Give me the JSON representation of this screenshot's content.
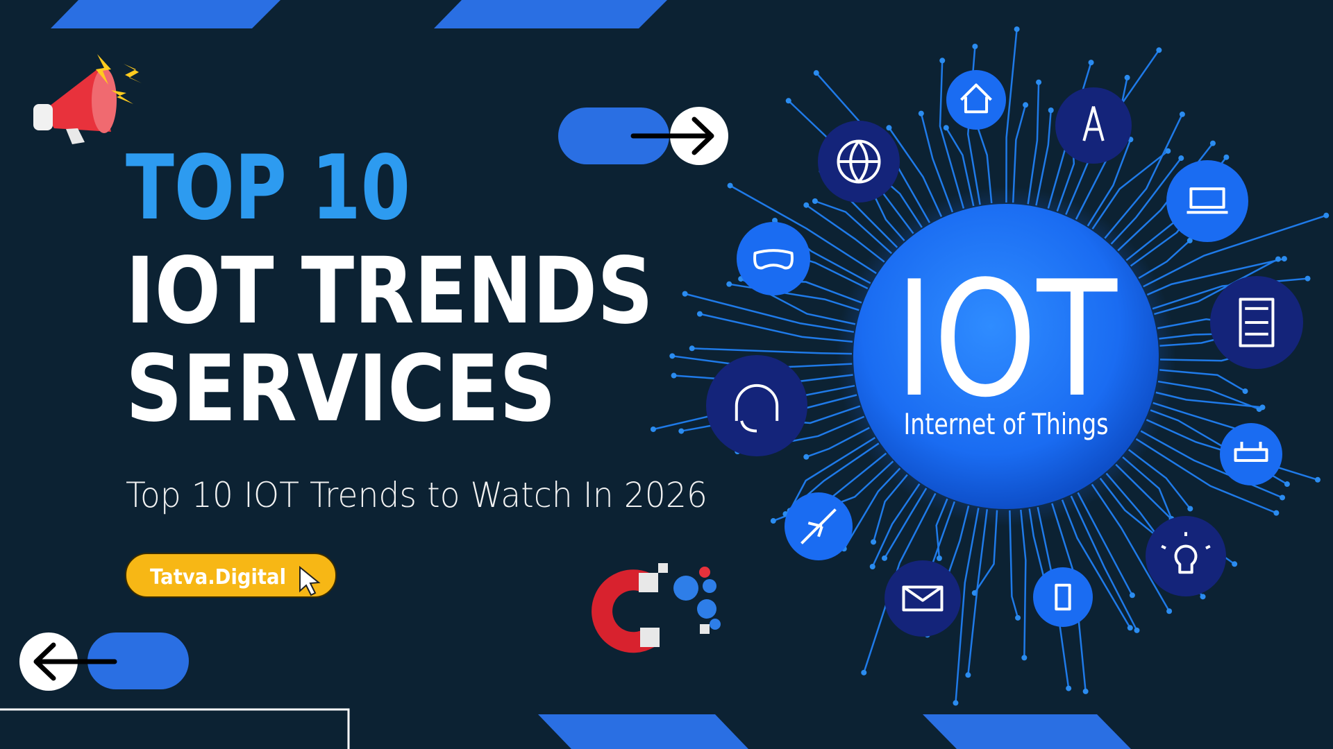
{
  "headline": {
    "line1": "TOP 10",
    "line2": "IOT TRENDS",
    "line3": "SERVICES"
  },
  "subtitle": "Top 10 IOT Trends to Watch In 2026",
  "badge": "Tatva.Digital",
  "hub": {
    "title": "IOT",
    "subtitle": "Internet of Things"
  }
}
